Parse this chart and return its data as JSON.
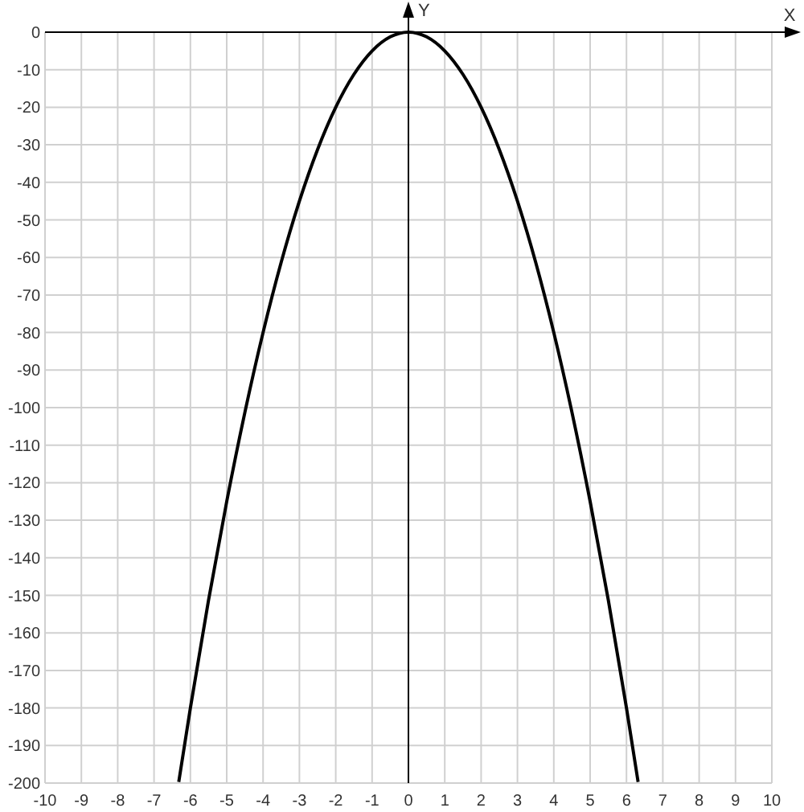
{
  "chart_data": {
    "type": "line",
    "xlabel": "X",
    "ylabel": "Y",
    "x": [
      -6.32,
      -6,
      -5.5,
      -5,
      -4.5,
      -4,
      -3.5,
      -3,
      -2.5,
      -2,
      -1.5,
      -1,
      -0.5,
      0,
      0.5,
      1,
      1.5,
      2,
      2.5,
      3,
      3.5,
      4,
      4.5,
      5,
      5.5,
      6,
      6.32
    ],
    "series": [
      {
        "color": "#000000",
        "values": [
          -199.7,
          -180,
          -151.25,
          -125,
          -101.25,
          -80,
          -61.25,
          -45,
          -31.25,
          -20,
          -11.25,
          -5,
          -1.25,
          0,
          -1.25,
          -5,
          -11.25,
          -20,
          -31.25,
          -45,
          -61.25,
          -80,
          -101.25,
          -125,
          -151.25,
          -180,
          -199.7
        ]
      }
    ],
    "xlim": [
      -10,
      10
    ],
    "ylim": [
      -200,
      0
    ],
    "xticks": [
      -10,
      -9,
      -8,
      -7,
      -6,
      -5,
      -4,
      -3,
      -2,
      -1,
      0,
      1,
      2,
      3,
      4,
      5,
      6,
      7,
      8,
      9,
      10
    ],
    "yticks": [
      0,
      -10,
      -20,
      -30,
      -40,
      -50,
      -60,
      -70,
      -80,
      -90,
      -100,
      -110,
      -120,
      -130,
      -140,
      -150,
      -160,
      -170,
      -180,
      -190,
      -200
    ],
    "grid": true,
    "marker": "none",
    "line_style": "solid"
  }
}
